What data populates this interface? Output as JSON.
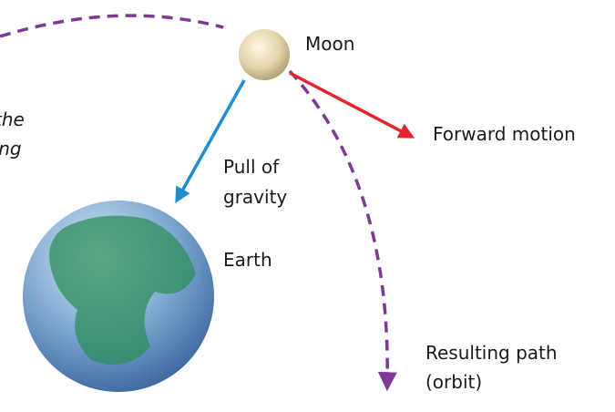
{
  "caption_fragment": {
    "lines": [
      "the",
      "ging"
    ]
  },
  "labels": {
    "moon": {
      "lines": [
        "Moon"
      ]
    },
    "forward_motion": {
      "lines": [
        "Forward motion"
      ]
    },
    "pull_of_gravity": {
      "lines": [
        "Pull of",
        "gravity"
      ]
    },
    "earth": {
      "lines": [
        "Earth"
      ]
    },
    "resulting_path": {
      "lines": [
        "Resulting path",
        "(orbit)"
      ]
    }
  }
}
